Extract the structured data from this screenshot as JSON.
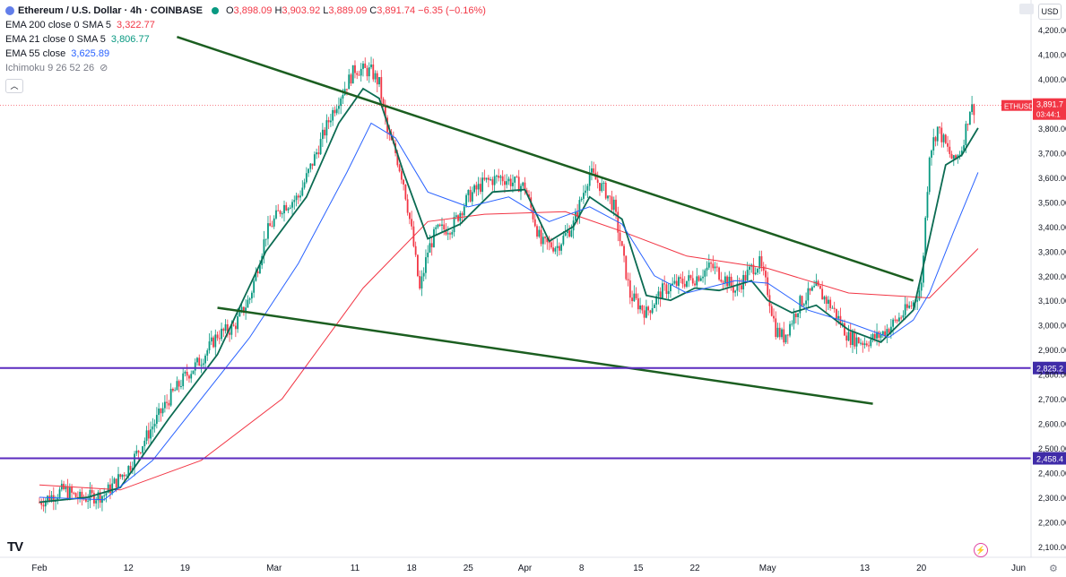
{
  "header": {
    "symbol": "Ethereum / U.S. Dollar · 4h · COINBASE",
    "ohlc": {
      "o_label": "O",
      "o": "3,898.09",
      "h_label": "H",
      "h": "3,903.92",
      "l_label": "L",
      "l": "3,889.09",
      "c_label": "C",
      "c": "3,891.74",
      "change": "−6.35 (−0.16%)"
    },
    "currency_button": "USD"
  },
  "indicators": [
    {
      "label": "EMA 200 close 0 SMA 5",
      "value": "3,322.77",
      "color": "#f23645"
    },
    {
      "label": "EMA 21 close 0 SMA 5",
      "value": "3,806.77",
      "color": "#089981"
    },
    {
      "label": "EMA 55 close",
      "value": "3,625.89",
      "color": "#2962ff"
    },
    {
      "label": "Ichimoku 9 26 52 26",
      "value": "",
      "color": "#787b86"
    }
  ],
  "icons": [
    "eth-icon",
    "live-dot-icon",
    "eye-off-icon",
    "chevron-up-icon",
    "tradingview-logo",
    "bolt-icon",
    "settings-icon"
  ],
  "colors": {
    "up": "#089981",
    "down": "#f23645",
    "ema200": "#f23645",
    "ema21": "#0b6b52",
    "ema55": "#2962ff",
    "trendline": "#1b5e20",
    "hline": "#5b2bbf",
    "price_label": "#f23645"
  },
  "chart_data": {
    "type": "candlestick",
    "title": "Ethereum / U.S. Dollar · 4h · COINBASE",
    "ylim": [
      2100,
      4300
    ],
    "y_ticks": [
      2100,
      2200,
      2300,
      2400,
      2500,
      2600,
      2700,
      2800,
      2900,
      3000,
      3100,
      3200,
      3300,
      3400,
      3500,
      3600,
      3700,
      3800,
      3900,
      4000,
      4100,
      4200
    ],
    "y_tick_labels": [
      "2,100.00",
      "2,200.00",
      "2,300.00",
      "2,400.00",
      "2,500.00",
      "2,600.00",
      "2,700.00",
      "2,800.00",
      "2,900.00",
      "3,000.00",
      "3,100.00",
      "3,200.00",
      "3,300.00",
      "3,400.00",
      "3,500.00",
      "3,600.00",
      "3,700.00",
      "3,800.00",
      "3,900.00",
      "4,000.00",
      "4,100.00",
      "4,200.00"
    ],
    "x_tick_labels": [
      "Feb",
      "12",
      "19",
      "Mar",
      "11",
      "18",
      "25",
      "Apr",
      "8",
      "15",
      "22",
      "May",
      "13",
      "20",
      "Jun"
    ],
    "x_tick_days": [
      0,
      11,
      18,
      29,
      39,
      46,
      53,
      60,
      67,
      74,
      81,
      90,
      102,
      109,
      121
    ],
    "x_range_days": [
      0,
      125
    ],
    "price_path": [
      [
        0,
        2280
      ],
      [
        3,
        2330
      ],
      [
        5,
        2295
      ],
      [
        8,
        2310
      ],
      [
        11,
        2420
      ],
      [
        14,
        2590
      ],
      [
        16,
        2700
      ],
      [
        18,
        2790
      ],
      [
        20,
        2860
      ],
      [
        22,
        2960
      ],
      [
        24,
        2990
      ],
      [
        26,
        3110
      ],
      [
        28,
        3370
      ],
      [
        30,
        3480
      ],
      [
        32,
        3520
      ],
      [
        34,
        3680
      ],
      [
        36,
        3850
      ],
      [
        37,
        3920
      ],
      [
        39,
        4040
      ],
      [
        41,
        4030
      ],
      [
        42,
        3980
      ],
      [
        43,
        3780
      ],
      [
        44,
        3700
      ],
      [
        45,
        3580
      ],
      [
        46,
        3380
      ],
      [
        47,
        3140
      ],
      [
        48,
        3300
      ],
      [
        49,
        3380
      ],
      [
        51,
        3400
      ],
      [
        53,
        3520
      ],
      [
        55,
        3580
      ],
      [
        57,
        3600
      ],
      [
        60,
        3560
      ],
      [
        62,
        3330
      ],
      [
        64,
        3320
      ],
      [
        66,
        3410
      ],
      [
        68,
        3620
      ],
      [
        70,
        3540
      ],
      [
        71,
        3480
      ],
      [
        73,
        3120
      ],
      [
        75,
        3050
      ],
      [
        77,
        3140
      ],
      [
        79,
        3170
      ],
      [
        81,
        3190
      ],
      [
        83,
        3240
      ],
      [
        85,
        3180
      ],
      [
        86,
        3140
      ],
      [
        88,
        3230
      ],
      [
        89,
        3250
      ],
      [
        90,
        3140
      ],
      [
        91,
        2980
      ],
      [
        92,
        2950
      ],
      [
        94,
        3090
      ],
      [
        96,
        3150
      ],
      [
        98,
        3070
      ],
      [
        100,
        2950
      ],
      [
        102,
        2930
      ],
      [
        104,
        2960
      ],
      [
        106,
        3020
      ],
      [
        108,
        3090
      ],
      [
        109,
        3160
      ],
      [
        110,
        3700
      ],
      [
        111,
        3800
      ],
      [
        112,
        3730
      ],
      [
        113,
        3660
      ],
      [
        114,
        3720
      ],
      [
        115,
        3880
      ]
    ],
    "series": [
      {
        "name": "EMA 200 close 0 SMA 5",
        "value": 3322.77,
        "color": "#f23645",
        "points": [
          [
            0,
            2350
          ],
          [
            10,
            2330
          ],
          [
            20,
            2450
          ],
          [
            30,
            2700
          ],
          [
            40,
            3150
          ],
          [
            48,
            3420
          ],
          [
            55,
            3450
          ],
          [
            65,
            3460
          ],
          [
            72,
            3380
          ],
          [
            80,
            3280
          ],
          [
            90,
            3230
          ],
          [
            100,
            3130
          ],
          [
            110,
            3110
          ],
          [
            116,
            3310
          ]
        ]
      },
      {
        "name": "EMA 21 close 0 SMA 5",
        "value": 3806.77,
        "color": "#0b6b52",
        "points": [
          [
            0,
            2280
          ],
          [
            6,
            2300
          ],
          [
            10,
            2340
          ],
          [
            16,
            2620
          ],
          [
            22,
            2880
          ],
          [
            28,
            3300
          ],
          [
            33,
            3520
          ],
          [
            37,
            3820
          ],
          [
            40,
            3960
          ],
          [
            42,
            3920
          ],
          [
            45,
            3620
          ],
          [
            48,
            3350
          ],
          [
            52,
            3410
          ],
          [
            56,
            3540
          ],
          [
            60,
            3550
          ],
          [
            63,
            3340
          ],
          [
            66,
            3400
          ],
          [
            68,
            3520
          ],
          [
            72,
            3430
          ],
          [
            75,
            3120
          ],
          [
            78,
            3100
          ],
          [
            81,
            3150
          ],
          [
            84,
            3140
          ],
          [
            88,
            3180
          ],
          [
            90,
            3100
          ],
          [
            93,
            3050
          ],
          [
            96,
            3080
          ],
          [
            100,
            2980
          ],
          [
            104,
            2930
          ],
          [
            108,
            3060
          ],
          [
            110,
            3350
          ],
          [
            112,
            3650
          ],
          [
            114,
            3690
          ],
          [
            116,
            3800
          ]
        ]
      },
      {
        "name": "EMA 55 close",
        "value": 3625.89,
        "color": "#2962ff",
        "points": [
          [
            0,
            2300
          ],
          [
            8,
            2290
          ],
          [
            14,
            2450
          ],
          [
            20,
            2700
          ],
          [
            26,
            2950
          ],
          [
            32,
            3250
          ],
          [
            38,
            3620
          ],
          [
            41,
            3820
          ],
          [
            44,
            3760
          ],
          [
            48,
            3540
          ],
          [
            53,
            3480
          ],
          [
            58,
            3520
          ],
          [
            63,
            3420
          ],
          [
            68,
            3480
          ],
          [
            72,
            3410
          ],
          [
            76,
            3200
          ],
          [
            80,
            3130
          ],
          [
            86,
            3180
          ],
          [
            90,
            3170
          ],
          [
            95,
            3060
          ],
          [
            100,
            3010
          ],
          [
            105,
            2950
          ],
          [
            108,
            3020
          ],
          [
            110,
            3130
          ],
          [
            113,
            3380
          ],
          [
            116,
            3620
          ]
        ]
      }
    ],
    "trendlines": [
      {
        "name": "upper trendline",
        "from": [
          17,
          4170
        ],
        "to": [
          108,
          3180
        ]
      },
      {
        "name": "lower trendline",
        "from": [
          22,
          3070
        ],
        "to": [
          103,
          2680
        ]
      }
    ],
    "horizontal_lines": [
      {
        "value": 2825.2,
        "label": "2,825.2"
      },
      {
        "value": 2458.4,
        "label": "2,458.4"
      }
    ],
    "current_price": {
      "value": 3891.7,
      "label": "3,891.7",
      "symbol_label": "ETHUSD",
      "countdown": "03:44:1"
    }
  }
}
